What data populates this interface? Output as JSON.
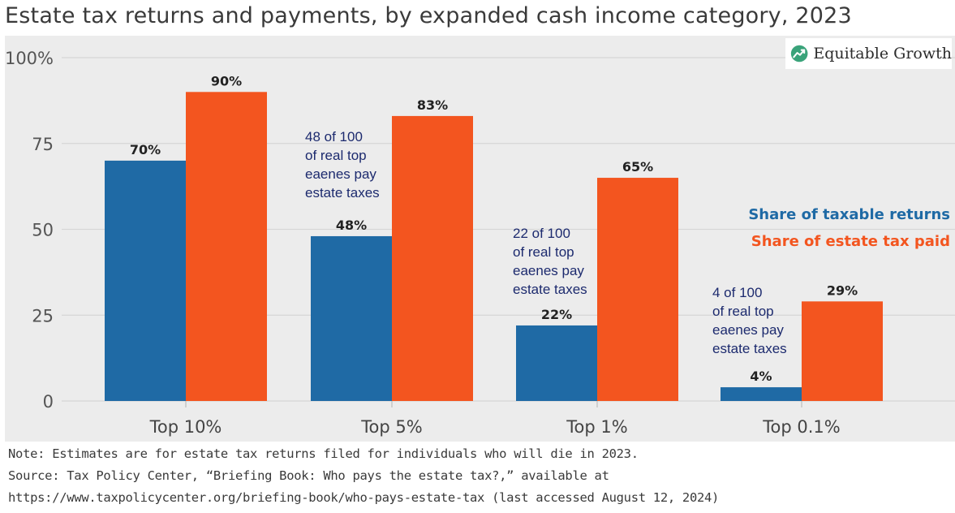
{
  "chart_data": {
    "type": "bar",
    "title": "Estate tax returns and payments, by expanded cash income category, 2023",
    "categories": [
      "Top 10%",
      "Top 5%",
      "Top 1%",
      "Top 0.1%"
    ],
    "series": [
      {
        "name": "Share of taxable returns",
        "values": [
          70,
          48,
          22,
          4
        ],
        "color": "#1f6aa5"
      },
      {
        "name": "Share of estate tax paid",
        "values": [
          90,
          83,
          65,
          29
        ],
        "color": "#f3551f"
      }
    ],
    "data_labels": [
      [
        "70%",
        "48%",
        "22%",
        "4%"
      ],
      [
        "90%",
        "83%",
        "65%",
        "29%"
      ]
    ],
    "yticks": [
      0,
      25,
      50,
      75,
      100
    ],
    "ytick_labels": [
      "0",
      "25",
      "50",
      "75",
      "100%"
    ],
    "ylim": [
      0,
      100
    ],
    "grid": true,
    "legend_position": "right",
    "annotations": [
      "48 of 100\nof real top\neaenes pay\nestate taxes",
      "22 of 100\nof real top\neaenes pay\nestate taxes",
      "4 of 100\nof real top\neaenes pay\nestate taxes"
    ]
  },
  "logo": {
    "text": "Equitable Growth",
    "icon": "growth-arrow-icon",
    "color": "#3aa37a"
  },
  "notes": [
    "Note: Estimates are for estate tax returns filed for individuals who will die in 2023.",
    "Source: Tax Policy Center, “Briefing Book: Who pays the estate tax?,” available at",
    "https://www.taxpolicycenter.org/briefing-book/who-pays-estate-tax (last accessed August 12, 2024)"
  ]
}
